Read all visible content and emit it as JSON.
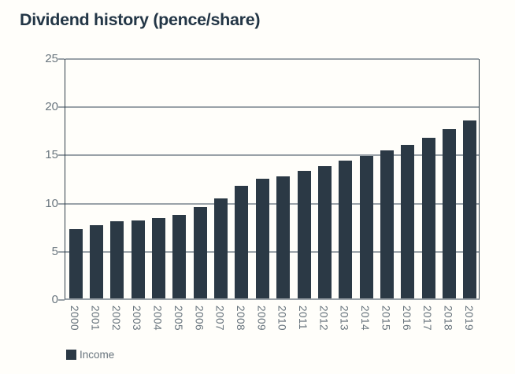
{
  "page": {
    "title": "Dividend history (pence/share)"
  },
  "legend": {
    "label": "Income"
  },
  "colors": {
    "background": "#fffefa",
    "bar": "#2b3945",
    "title": "#233646",
    "gridline": "#9aa2a8",
    "axis_line": "#2e3d48",
    "axis_text": "#68747d"
  },
  "chart_data": {
    "type": "bar",
    "title": "Dividend history (pence/share)",
    "categories": [
      "2000",
      "2001",
      "2002",
      "2003",
      "2004",
      "2005",
      "2006",
      "2007",
      "2008",
      "2009",
      "2010",
      "2011",
      "2012",
      "2013",
      "2014",
      "2015",
      "2016",
      "2017",
      "2018",
      "2019"
    ],
    "series": [
      {
        "name": "Income",
        "values": [
          7.2,
          7.6,
          8.0,
          8.1,
          8.3,
          8.7,
          9.5,
          10.4,
          11.7,
          12.4,
          12.7,
          13.2,
          13.7,
          14.3,
          14.8,
          15.4,
          15.9,
          16.7,
          17.6,
          18.5
        ]
      }
    ],
    "xlabel": "",
    "ylabel": "",
    "ylim": [
      0,
      25
    ],
    "yticks": [
      0,
      5,
      10,
      15,
      20,
      25
    ],
    "grid": true,
    "legend_position": "bottom-left",
    "x_tick_rotation": 90
  }
}
